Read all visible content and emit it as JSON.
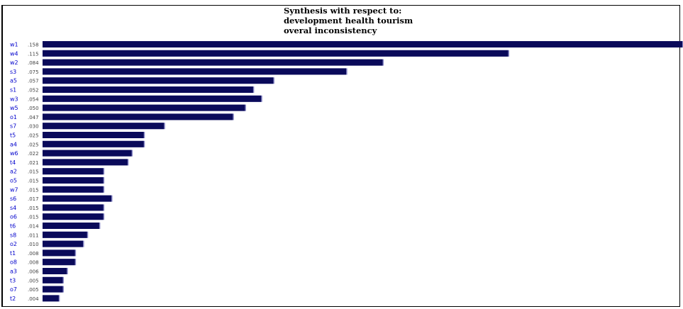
{
  "chart_data": {
    "type": "bar",
    "orientation": "horizontal",
    "title_lines": [
      "Synthesis with respect to:",
      "development health tourism",
      "overal inconsistency"
    ],
    "categories": [
      "w1",
      "w4",
      "w2",
      "s3",
      "a5",
      "s1",
      "w3",
      "w5",
      "o1",
      "s7",
      "t5",
      "a4",
      "w6",
      "t4",
      "a2",
      "o5",
      "w7",
      "s6",
      "s4",
      "o6",
      "t6",
      "s8",
      "o2",
      "t1",
      "o8",
      "a3",
      "t3",
      "o7",
      "t2"
    ],
    "values": [
      0.158,
      0.115,
      0.084,
      0.075,
      0.057,
      0.052,
      0.054,
      0.05,
      0.047,
      0.03,
      0.025,
      0.025,
      0.022,
      0.021,
      0.015,
      0.015,
      0.015,
      0.017,
      0.015,
      0.015,
      0.014,
      0.011,
      0.01,
      0.008,
      0.008,
      0.006,
      0.005,
      0.005,
      0.004
    ],
    "value_labels": [
      ".158",
      ".115",
      ".084",
      ".075",
      ".057",
      ".052",
      ".054",
      ".050",
      ".047",
      ".030",
      ".025",
      ".025",
      ".022",
      ".021",
      ".015",
      ".015",
      ".015",
      ".017",
      ".015",
      ".015",
      ".014",
      ".011",
      ".010",
      ".008",
      ".008",
      ".006",
      ".005",
      ".005",
      ".004"
    ],
    "xlim": [
      0,
      0.158
    ],
    "grid": false,
    "legend": "none",
    "colors": {
      "bar": "#0a0a5a",
      "bar_highlight": "#8c8cc8",
      "label": "#0000cc"
    }
  }
}
